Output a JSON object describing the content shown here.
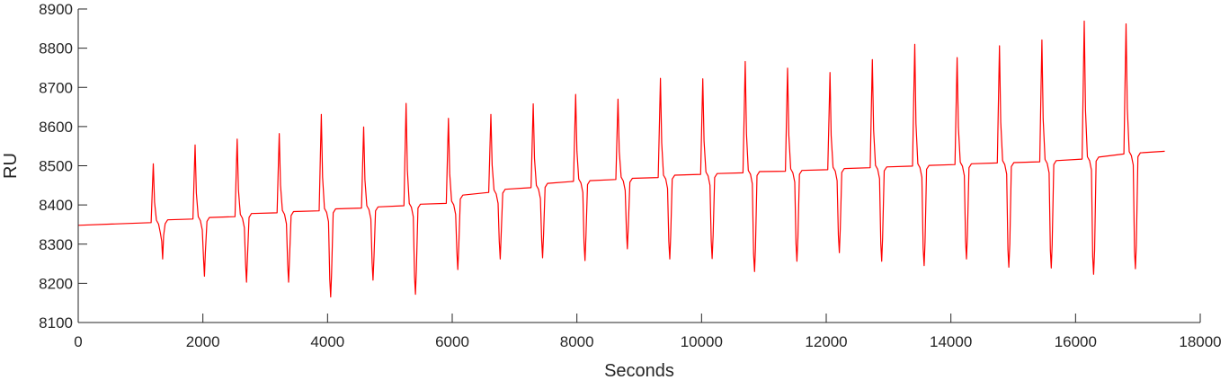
{
  "chart_data": {
    "type": "line",
    "xlabel": "Seconds",
    "ylabel": "RU",
    "xlim": [
      0,
      18000
    ],
    "ylim": [
      8100,
      8900
    ],
    "xticks": [
      0,
      2000,
      4000,
      6000,
      8000,
      10000,
      12000,
      14000,
      16000,
      18000
    ],
    "yticks": [
      8100,
      8200,
      8300,
      8400,
      8500,
      8600,
      8700,
      8800,
      8900
    ],
    "grid": false,
    "series": [
      {
        "color": "#ff0000",
        "start": {
          "x": 0,
          "y": 8348
        },
        "end": {
          "x": 17430,
          "y": 8537
        },
        "cycles": [
          {
            "x": 1195,
            "base_before": 8355,
            "peak": 8505,
            "trough": 8262,
            "base_after": 8362
          },
          {
            "x": 1865,
            "base_before": 8364,
            "peak": 8553,
            "trough": 8218,
            "base_after": 8368
          },
          {
            "x": 2540,
            "base_before": 8370,
            "peak": 8568,
            "trough": 8203,
            "base_after": 8378
          },
          {
            "x": 3215,
            "base_before": 8380,
            "peak": 8582,
            "trough": 8203,
            "base_after": 8383
          },
          {
            "x": 3890,
            "base_before": 8385,
            "peak": 8631,
            "trough": 8165,
            "base_after": 8390
          },
          {
            "x": 4570,
            "base_before": 8392,
            "peak": 8599,
            "trough": 8208,
            "base_after": 8395
          },
          {
            "x": 5250,
            "base_before": 8398,
            "peak": 8659,
            "trough": 8172,
            "base_after": 8402
          },
          {
            "x": 5930,
            "base_before": 8404,
            "peak": 8621,
            "trough": 8235,
            "base_after": 8425
          },
          {
            "x": 6610,
            "base_before": 8432,
            "peak": 8631,
            "trough": 8262,
            "base_after": 8440
          },
          {
            "x": 7290,
            "base_before": 8444,
            "peak": 8658,
            "trough": 8265,
            "base_after": 8455
          },
          {
            "x": 7970,
            "base_before": 8460,
            "peak": 8682,
            "trough": 8258,
            "base_after": 8462
          },
          {
            "x": 8650,
            "base_before": 8465,
            "peak": 8670,
            "trough": 8288,
            "base_after": 8468
          },
          {
            "x": 9330,
            "base_before": 8470,
            "peak": 8723,
            "trough": 8262,
            "base_after": 8476
          },
          {
            "x": 10010,
            "base_before": 8478,
            "peak": 8722,
            "trough": 8263,
            "base_after": 8480
          },
          {
            "x": 10690,
            "base_before": 8482,
            "peak": 8766,
            "trough": 8230,
            "base_after": 8485
          },
          {
            "x": 11370,
            "base_before": 8486,
            "peak": 8749,
            "trough": 8256,
            "base_after": 8488
          },
          {
            "x": 12050,
            "base_before": 8490,
            "peak": 8738,
            "trough": 8278,
            "base_after": 8493
          },
          {
            "x": 12730,
            "base_before": 8495,
            "peak": 8771,
            "trough": 8256,
            "base_after": 8497
          },
          {
            "x": 13410,
            "base_before": 8499,
            "peak": 8810,
            "trough": 8245,
            "base_after": 8501
          },
          {
            "x": 14090,
            "base_before": 8503,
            "peak": 8776,
            "trough": 8262,
            "base_after": 8505
          },
          {
            "x": 14770,
            "base_before": 8507,
            "peak": 8806,
            "trough": 8241,
            "base_after": 8508
          },
          {
            "x": 15450,
            "base_before": 8510,
            "peak": 8821,
            "trough": 8239,
            "base_after": 8513
          },
          {
            "x": 16130,
            "base_before": 8517,
            "peak": 8869,
            "trough": 8223,
            "base_after": 8522
          },
          {
            "x": 16800,
            "base_before": 8530,
            "peak": 8862,
            "trough": 8237,
            "base_after": 8533
          }
        ]
      }
    ]
  }
}
